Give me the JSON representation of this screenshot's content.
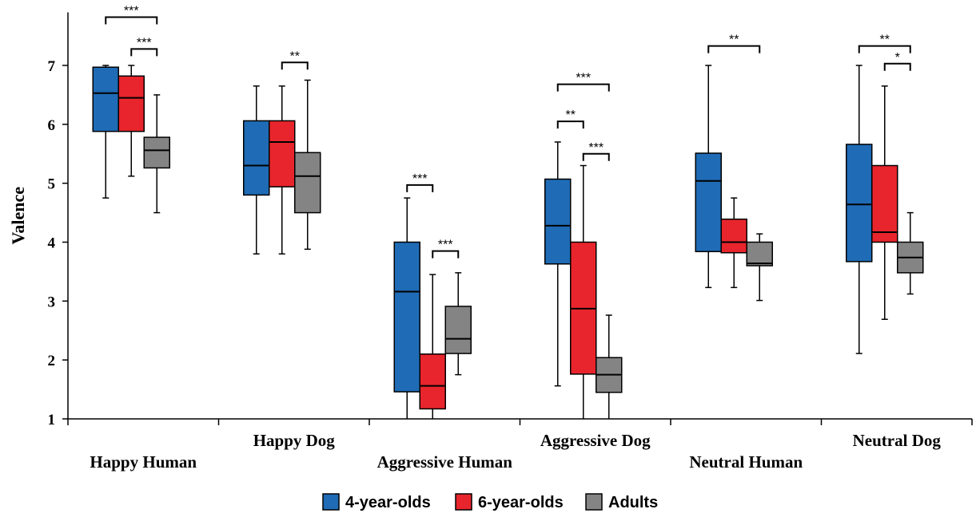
{
  "chart_data": {
    "type": "box",
    "ylabel": "Valence",
    "ylim": [
      1,
      7.9
    ],
    "yticks": [
      "1",
      "2",
      "3",
      "4",
      "5",
      "6",
      "7"
    ],
    "categories": [
      "Happy Human",
      "Happy Dog",
      "Aggressive Human",
      "Aggressive Dog",
      "Neutral Human",
      "Neutral Dog"
    ],
    "grid": false,
    "legend_position": "bottom-center",
    "series": [
      {
        "name": "4-year-olds",
        "color": "#1f6bb5",
        "boxes": [
          {
            "min": 4.75,
            "q1": 5.88,
            "median": 6.53,
            "q3": 6.97,
            "max": 7.0
          },
          {
            "min": 3.8,
            "q1": 4.8,
            "median": 5.3,
            "q3": 6.06,
            "max": 6.65
          },
          {
            "min": 1.0,
            "q1": 1.46,
            "median": 3.16,
            "q3": 4.0,
            "max": 4.75
          },
          {
            "min": 1.56,
            "q1": 3.63,
            "median": 4.28,
            "q3": 5.07,
            "max": 5.7
          },
          {
            "min": 3.23,
            "q1": 3.84,
            "median": 5.04,
            "q3": 5.51,
            "max": 7.0
          },
          {
            "min": 2.11,
            "q1": 3.67,
            "median": 4.64,
            "q3": 5.66,
            "max": 7.0
          }
        ]
      },
      {
        "name": "6-year-olds",
        "color": "#e8252c",
        "boxes": [
          {
            "min": 5.12,
            "q1": 5.88,
            "median": 6.45,
            "q3": 6.82,
            "max": 7.0
          },
          {
            "min": 3.8,
            "q1": 4.94,
            "median": 5.7,
            "q3": 6.06,
            "max": 6.65
          },
          {
            "min": 1.0,
            "q1": 1.17,
            "median": 1.56,
            "q3": 2.1,
            "max": 3.45
          },
          {
            "min": 1.0,
            "q1": 1.76,
            "median": 2.87,
            "q3": 4.0,
            "max": 5.3
          },
          {
            "min": 3.23,
            "q1": 3.82,
            "median": 4.0,
            "q3": 4.39,
            "max": 4.75
          },
          {
            "min": 2.69,
            "q1": 4.0,
            "median": 4.17,
            "q3": 5.3,
            "max": 6.65
          }
        ]
      },
      {
        "name": "Adults",
        "color": "#848484",
        "boxes": [
          {
            "min": 4.5,
            "q1": 5.26,
            "median": 5.56,
            "q3": 5.78,
            "max": 6.5
          },
          {
            "min": 3.88,
            "q1": 4.5,
            "median": 5.12,
            "q3": 5.52,
            "max": 6.75
          },
          {
            "min": 1.75,
            "q1": 2.11,
            "median": 2.36,
            "q3": 2.91,
            "max": 3.48
          },
          {
            "min": 1.0,
            "q1": 1.45,
            "median": 1.75,
            "q3": 2.04,
            "max": 2.76
          },
          {
            "min": 3.01,
            "q1": 3.6,
            "median": 3.64,
            "q3": 4.0,
            "max": 4.14
          },
          {
            "min": 3.12,
            "q1": 3.48,
            "median": 3.74,
            "q3": 4.0,
            "max": 4.5
          }
        ]
      }
    ],
    "significance": [
      {
        "category": 0,
        "from": 0,
        "to": 2,
        "label": "***",
        "y": 7.82
      },
      {
        "category": 0,
        "from": 1,
        "to": 2,
        "label": "***",
        "y": 7.28
      },
      {
        "category": 1,
        "from": 1,
        "to": 2,
        "label": "**",
        "y": 7.05
      },
      {
        "category": 2,
        "from": 0,
        "to": 1,
        "label": "***",
        "y": 4.97
      },
      {
        "category": 2,
        "from": 1,
        "to": 2,
        "label": "***",
        "y": 3.85
      },
      {
        "category": 3,
        "from": 0,
        "to": 2,
        "label": "***",
        "y": 6.68
      },
      {
        "category": 3,
        "from": 0,
        "to": 1,
        "label": "**",
        "y": 6.05
      },
      {
        "category": 3,
        "from": 1,
        "to": 2,
        "label": "***",
        "y": 5.5
      },
      {
        "category": 4,
        "from": 0,
        "to": 2,
        "label": "**",
        "y": 7.33
      },
      {
        "category": 5,
        "from": 0,
        "to": 2,
        "label": "**",
        "y": 7.33
      },
      {
        "category": 5,
        "from": 1,
        "to": 2,
        "label": "*",
        "y": 7.03
      }
    ]
  }
}
